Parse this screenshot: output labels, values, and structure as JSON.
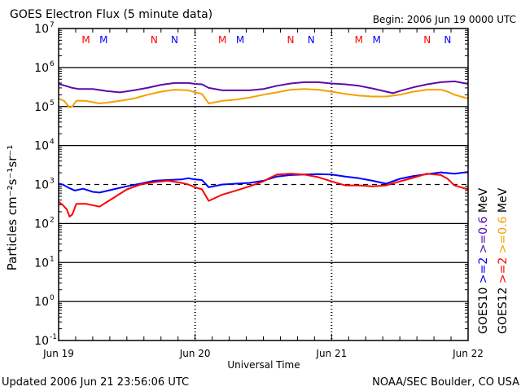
{
  "header": {
    "title": "GOES Electron Flux (5 minute data)",
    "begin": "Begin: 2006 Jun 19 0000 UTC"
  },
  "footer": {
    "updated": "Updated 2006 Jun 21 23:56:06 UTC",
    "source": "NOAA/SEC Boulder, CO USA"
  },
  "colors": {
    "goes10_2mev": "#0000ff",
    "goes10_06mev": "#5b0ca8",
    "goes12_2mev": "#ff0000",
    "goes12_06mev": "#f5a000",
    "threshold": "#000000"
  },
  "chart_data": {
    "type": "line",
    "title": "GOES Electron Flux (5 minute data)",
    "xlabel": "Universal Time",
    "ylabel": "Particles cm⁻²s⁻¹sr⁻¹",
    "yscale": "log",
    "ylim": [
      0.1,
      10000000
    ],
    "xlim": [
      0,
      3
    ],
    "x_unit": "days since 2006 Jun 19 0000 UTC",
    "x_ticks": [
      {
        "value": 0,
        "label": "Jun 19"
      },
      {
        "value": 1,
        "label": "Jun 20"
      },
      {
        "value": 2,
        "label": "Jun 21"
      },
      {
        "value": 3,
        "label": "Jun 22"
      }
    ],
    "y_ticks": [
      {
        "value": 0.1,
        "base": "10",
        "exp": "-1"
      },
      {
        "value": 1,
        "base": "10",
        "exp": "0"
      },
      {
        "value": 10,
        "base": "10",
        "exp": "1"
      },
      {
        "value": 100,
        "base": "10",
        "exp": "2"
      },
      {
        "value": 1000,
        "base": "10",
        "exp": "3"
      },
      {
        "value": 10000,
        "base": "10",
        "exp": "4"
      },
      {
        "value": 100000,
        "base": "10",
        "exp": "5"
      },
      {
        "value": 1000000,
        "base": "10",
        "exp": "6"
      },
      {
        "value": 10000000,
        "base": "10",
        "exp": "7"
      }
    ],
    "grid_lines_at": [
      1000000,
      100000,
      10000,
      100,
      10,
      1
    ],
    "threshold": {
      "value": 1000,
      "style": "dashed"
    },
    "markers": [
      {
        "label": "M",
        "color_key": "goes12_2mev",
        "day_offsets": [
          0.2
        ]
      },
      {
        "label": "M",
        "color_key": "goes10_2mev",
        "day_offsets": [
          0.33
        ]
      },
      {
        "label": "N",
        "color_key": "goes12_2mev",
        "day_offsets": [
          0.7
        ]
      },
      {
        "label": "N",
        "color_key": "goes10_2mev",
        "day_offsets": [
          0.85
        ]
      }
    ],
    "legend": {
      "placement": "right",
      "columns": [
        {
          "satellite": "GOES10",
          "entries": [
            {
              "label": ">=2",
              "color_key": "goes10_2mev"
            },
            {
              "label": ">=0.6",
              "color_key": "goes10_06mev"
            }
          ],
          "unit": "MeV"
        },
        {
          "satellite": "GOES12",
          "entries": [
            {
              "label": ">=2",
              "color_key": "goes12_2mev"
            },
            {
              "label": ">=0.6",
              "color_key": "goes12_06mev"
            }
          ],
          "unit": "MeV"
        }
      ]
    },
    "series": [
      {
        "name": "GOES10 >=0.6 MeV",
        "color_key": "goes10_06mev",
        "x": [
          0,
          0.05,
          0.1,
          0.15,
          0.25,
          0.35,
          0.45,
          0.55,
          0.65,
          0.75,
          0.85,
          0.95,
          1.0,
          1.05,
          1.1,
          1.2,
          1.3,
          1.4,
          1.5,
          1.6,
          1.7,
          1.8,
          1.9,
          2.0,
          2.1,
          2.2,
          2.3,
          2.4,
          2.45,
          2.5,
          2.6,
          2.7,
          2.8,
          2.9,
          3.0
        ],
        "values": [
          380000,
          340000,
          300000,
          280000,
          280000,
          250000,
          230000,
          260000,
          300000,
          360000,
          400000,
          400000,
          380000,
          370000,
          300000,
          260000,
          260000,
          260000,
          280000,
          340000,
          390000,
          420000,
          420000,
          390000,
          370000,
          340000,
          290000,
          240000,
          220000,
          250000,
          310000,
          370000,
          420000,
          440000,
          380000
        ]
      },
      {
        "name": "GOES12 >=0.6 MeV",
        "color_key": "goes12_06mev",
        "x": [
          0,
          0.04,
          0.08,
          0.1,
          0.13,
          0.2,
          0.3,
          0.35,
          0.45,
          0.55,
          0.65,
          0.75,
          0.85,
          0.95,
          1.0,
          1.05,
          1.1,
          1.2,
          1.3,
          1.4,
          1.5,
          1.6,
          1.7,
          1.8,
          1.9,
          2.0,
          2.1,
          2.2,
          2.3,
          2.4,
          2.5,
          2.6,
          2.7,
          2.8,
          2.85,
          2.9,
          3.0
        ],
        "values": [
          160000,
          140000,
          95000,
          100000,
          140000,
          140000,
          120000,
          125000,
          140000,
          160000,
          200000,
          240000,
          270000,
          260000,
          230000,
          210000,
          120000,
          140000,
          150000,
          170000,
          200000,
          230000,
          270000,
          280000,
          270000,
          240000,
          210000,
          190000,
          180000,
          180000,
          200000,
          240000,
          270000,
          270000,
          240000,
          200000,
          160000
        ]
      },
      {
        "name": "GOES10 >=2 MeV",
        "color_key": "goes10_2mev",
        "x": [
          0,
          0.03,
          0.08,
          0.12,
          0.18,
          0.25,
          0.3,
          0.4,
          0.5,
          0.6,
          0.7,
          0.8,
          0.9,
          0.95,
          1.0,
          1.05,
          1.1,
          1.2,
          1.3,
          1.4,
          1.5,
          1.6,
          1.7,
          1.8,
          1.9,
          2.0,
          2.1,
          2.2,
          2.3,
          2.4,
          2.5,
          2.6,
          2.7,
          2.8,
          2.9,
          3.0
        ],
        "values": [
          1050,
          1000,
          800,
          700,
          780,
          650,
          620,
          750,
          900,
          1050,
          1250,
          1300,
          1350,
          1450,
          1350,
          1300,
          850,
          1000,
          1050,
          1100,
          1250,
          1600,
          1750,
          1800,
          1850,
          1800,
          1600,
          1450,
          1250,
          1050,
          1400,
          1650,
          1850,
          2050,
          1900,
          2100
        ]
      },
      {
        "name": "GOES12 >=2 MeV",
        "color_key": "goes12_2mev",
        "x": [
          0,
          0.03,
          0.06,
          0.08,
          0.1,
          0.13,
          0.2,
          0.3,
          0.4,
          0.5,
          0.6,
          0.7,
          0.8,
          0.9,
          0.95,
          1.0,
          1.05,
          1.1,
          1.2,
          1.3,
          1.4,
          1.5,
          1.55,
          1.6,
          1.7,
          1.8,
          1.9,
          2.0,
          2.1,
          2.2,
          2.3,
          2.4,
          2.5,
          2.6,
          2.7,
          2.8,
          2.85,
          2.9,
          3.0
        ],
        "values": [
          360,
          300,
          230,
          150,
          170,
          320,
          320,
          270,
          450,
          750,
          1000,
          1150,
          1250,
          1100,
          1000,
          850,
          750,
          380,
          550,
          700,
          900,
          1200,
          1500,
          1800,
          1900,
          1800,
          1550,
          1200,
          950,
          950,
          900,
          950,
          1200,
          1500,
          1900,
          1750,
          1400,
          950,
          750
        ]
      }
    ]
  }
}
